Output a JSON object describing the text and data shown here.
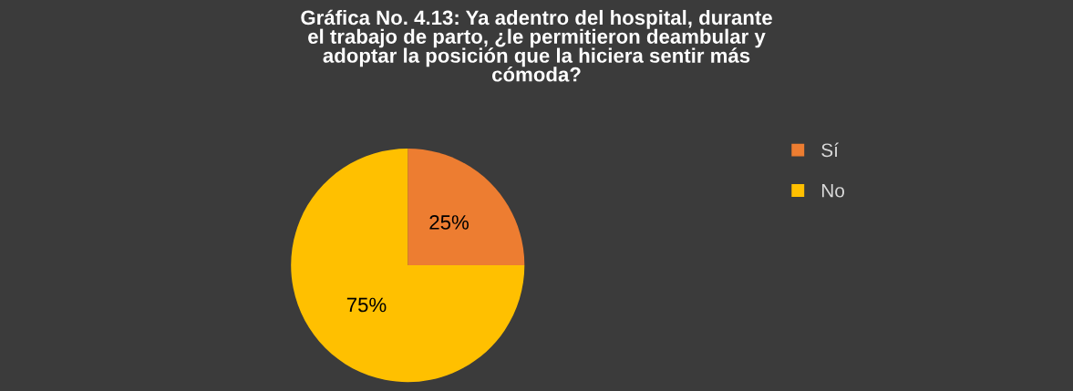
{
  "chart_data": {
    "type": "pie",
    "title": "Gráfica No. 4.13: Ya adentro del hospital, durante el trabajo de parto, ¿le permitieron deambular y adoptar la posición que la hiciera sentir más cómoda?",
    "categories": [
      "Sí",
      "No"
    ],
    "values": [
      25,
      75
    ],
    "colors": [
      "#ed7d31",
      "#ffc000"
    ],
    "value_labels": [
      "25%",
      "75%"
    ],
    "legend": "right"
  }
}
